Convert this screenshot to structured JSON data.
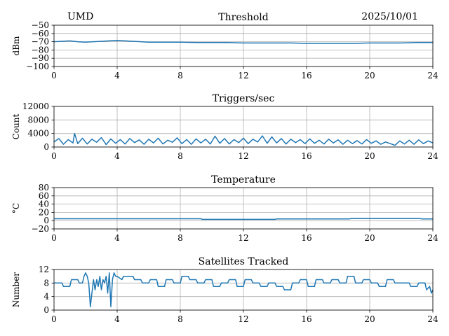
{
  "header": {
    "station": "UMD",
    "date": "2025/10/01"
  },
  "colors": {
    "line": "#1f77b4",
    "grid": "#b0b0b0",
    "axis": "#000000"
  },
  "chart_data": [
    {
      "type": "line",
      "title": "Threshold",
      "ylabel": "dBm",
      "xlim": [
        0,
        24
      ],
      "ylim": [
        -100,
        -50
      ],
      "xticks": [
        0,
        4,
        8,
        12,
        16,
        20,
        24
      ],
      "yticks": [
        -100,
        -90,
        -80,
        -70,
        -60,
        -50
      ],
      "grid": true,
      "series": [
        {
          "x": [
            0,
            0.5,
            1,
            1.5,
            2,
            2.5,
            3,
            3.5,
            4,
            4.5,
            5,
            5.5,
            6,
            7,
            8,
            9,
            10,
            11,
            12,
            13,
            14,
            15,
            16,
            17,
            18,
            19,
            20,
            21,
            22,
            23,
            24
          ],
          "y": [
            -70,
            -69.5,
            -69,
            -70,
            -70.5,
            -70,
            -69.5,
            -69,
            -68.5,
            -69,
            -69.5,
            -70,
            -70.5,
            -70.5,
            -70.5,
            -71,
            -71,
            -71,
            -71.5,
            -71.5,
            -71.5,
            -71.5,
            -72,
            -72,
            -72,
            -72,
            -71.5,
            -71.5,
            -71.5,
            -71,
            -71
          ]
        }
      ]
    },
    {
      "type": "line",
      "title": "Triggers/sec",
      "ylabel": "Count",
      "xlim": [
        0,
        24
      ],
      "ylim": [
        0,
        12000
      ],
      "xticks": [
        0,
        4,
        8,
        12,
        16,
        20,
        24
      ],
      "yticks": [
        0,
        4000,
        8000,
        12000
      ],
      "grid": true,
      "series": [
        {
          "x": [
            0,
            0.3,
            0.6,
            0.9,
            1.2,
            1.3,
            1.5,
            1.8,
            2.1,
            2.4,
            2.7,
            3.0,
            3.3,
            3.6,
            3.9,
            4.2,
            4.5,
            4.8,
            5.1,
            5.4,
            5.7,
            6.0,
            6.3,
            6.6,
            6.9,
            7.2,
            7.5,
            7.8,
            8.1,
            8.4,
            8.7,
            9.0,
            9.3,
            9.6,
            9.9,
            10.2,
            10.5,
            10.8,
            11.1,
            11.4,
            11.7,
            12.0,
            12.3,
            12.6,
            12.9,
            13.2,
            13.5,
            13.8,
            14.1,
            14.4,
            14.7,
            15.0,
            15.3,
            15.6,
            15.9,
            16.2,
            16.5,
            16.8,
            17.1,
            17.4,
            17.7,
            18.0,
            18.3,
            18.6,
            18.9,
            19.2,
            19.5,
            19.8,
            20.1,
            20.4,
            20.7,
            21.0,
            21.3,
            21.6,
            21.9,
            22.2,
            22.5,
            22.8,
            23.1,
            23.4,
            23.7,
            24.0
          ],
          "y": [
            1500,
            2500,
            800,
            2200,
            1200,
            4000,
            1000,
            2600,
            900,
            2300,
            1400,
            2800,
            700,
            2400,
            1100,
            2200,
            900,
            2500,
            1300,
            2100,
            800,
            2300,
            1200,
            2600,
            900,
            2000,
            1400,
            2700,
            1000,
            2200,
            800,
            2400,
            1200,
            2300,
            900,
            3200,
            1100,
            2500,
            900,
            2200,
            1300,
            2600,
            1000,
            2300,
            1500,
            3300,
            1100,
            3000,
            1200,
            2500,
            900,
            2300,
            1300,
            2200,
            1000,
            2400,
            1100,
            2000,
            900,
            2300,
            1200,
            2100,
            800,
            2000,
            1000,
            1900,
            900,
            2200,
            1100,
            1800,
            800,
            1500,
            1000,
            500,
            1800,
            900,
            2000,
            800,
            2100,
            1000,
            1800,
            1200
          ]
        }
      ]
    },
    {
      "type": "line",
      "title": "Temperature",
      "ylabel": "°C",
      "xlim": [
        0,
        24
      ],
      "ylim": [
        -20,
        80
      ],
      "xticks": [
        0,
        4,
        8,
        12,
        16,
        20,
        24
      ],
      "yticks": [
        -20,
        0,
        20,
        40,
        60,
        80
      ],
      "grid": true,
      "series": [
        {
          "x": [
            0,
            9.3,
            9.4,
            14,
            14.1,
            18.7,
            18.8,
            23.2,
            23.3,
            24
          ],
          "y": [
            4.5,
            4.5,
            3,
            3,
            4,
            4,
            5,
            5,
            4,
            4
          ]
        }
      ]
    },
    {
      "type": "line",
      "title": "Satellites Tracked",
      "ylabel": "Number",
      "xlim": [
        0,
        24
      ],
      "ylim": [
        0,
        12
      ],
      "xticks": [
        0,
        4,
        8,
        12,
        16,
        20,
        24
      ],
      "yticks": [
        0,
        4,
        8,
        12
      ],
      "grid": true,
      "series": [
        {
          "x": [
            0,
            0.5,
            0.6,
            1,
            1.1,
            1.5,
            1.6,
            1.8,
            1.9,
            2.0,
            2.1,
            2.2,
            2.3,
            2.4,
            2.5,
            2.6,
            2.7,
            2.8,
            2.9,
            3.0,
            3.1,
            3.2,
            3.3,
            3.4,
            3.5,
            3.6,
            3.7,
            3.8,
            3.9,
            4.0,
            4.3,
            4.4,
            5.0,
            5.1,
            5.5,
            5.6,
            6.0,
            6.1,
            6.5,
            6.6,
            7.0,
            7.1,
            7.5,
            7.6,
            8.0,
            8.1,
            8.5,
            8.6,
            9.0,
            9.1,
            9.5,
            9.6,
            10.0,
            10.1,
            10.5,
            10.6,
            11.0,
            11.1,
            11.5,
            11.6,
            12.0,
            12.1,
            12.5,
            12.6,
            13.0,
            13.1,
            13.5,
            13.6,
            14.0,
            14.1,
            14.5,
            14.6,
            15.0,
            15.1,
            15.5,
            15.6,
            16.0,
            16.1,
            16.5,
            16.6,
            17.0,
            17.1,
            17.5,
            17.6,
            18.0,
            18.1,
            18.5,
            18.6,
            19.0,
            19.1,
            19.5,
            19.6,
            20.0,
            20.1,
            20.5,
            20.6,
            21.0,
            21.1,
            21.5,
            21.6,
            22.0,
            22.1,
            22.5,
            22.6,
            23.0,
            23.1,
            23.5,
            23.6,
            23.8,
            23.9,
            24.0
          ],
          "y": [
            8,
            8,
            7,
            7,
            9,
            9,
            8,
            8,
            10,
            11,
            10,
            8,
            1,
            5,
            9,
            6,
            9,
            7,
            10,
            6,
            9,
            8,
            10,
            5,
            11,
            1,
            9,
            11,
            10,
            10,
            9,
            10,
            10,
            9,
            9,
            8,
            8,
            9,
            9,
            7,
            7,
            9,
            9,
            8,
            8,
            10,
            10,
            9,
            9,
            8,
            8,
            9,
            9,
            7,
            7,
            8,
            8,
            9,
            9,
            7,
            7,
            9,
            9,
            8,
            8,
            7,
            7,
            8,
            8,
            7,
            7,
            6,
            6,
            8,
            8,
            9,
            9,
            7,
            7,
            9,
            9,
            8,
            8,
            9,
            9,
            8,
            8,
            10,
            10,
            8,
            8,
            9,
            9,
            8,
            8,
            7,
            7,
            9,
            9,
            8,
            8,
            8,
            8,
            7,
            7,
            8,
            8,
            6,
            7,
            5,
            6
          ]
        }
      ]
    }
  ]
}
